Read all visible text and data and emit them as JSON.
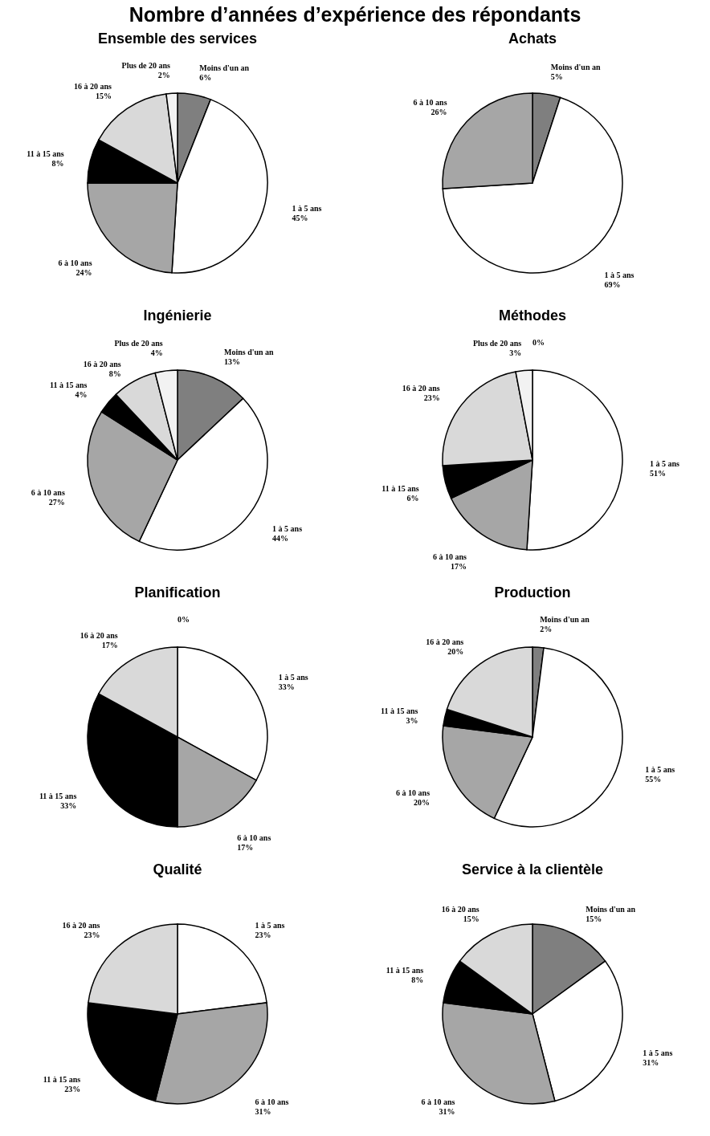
{
  "chart_data": [
    {
      "type": "pie",
      "title": "Nombre d’années d’expérience des répondants",
      "subtitle": "Ensemble des services",
      "categories": [
        "Moins d'un an",
        "1 à 5 ans",
        "6 à 10 ans",
        "11 à 15 ans",
        "16 à 20 ans",
        "Plus de 20 ans"
      ],
      "values": [
        6,
        45,
        24,
        8,
        15,
        2
      ],
      "value_labels": [
        "6%",
        "45%",
        "24%",
        "8%",
        "15%",
        "2%"
      ],
      "colors": [
        "#7f7f7f",
        "#ffffff",
        "#a6a6a6",
        "#000000",
        "#d9d9d9",
        "#f2f2f2"
      ]
    },
    {
      "type": "pie",
      "title": "Achats",
      "categories": [
        "Moins d'un an",
        "1 à 5 ans",
        "6 à 10 ans"
      ],
      "values": [
        5,
        69,
        26
      ],
      "value_labels": [
        "5%",
        "69%",
        "26%"
      ],
      "colors": [
        "#7f7f7f",
        "#ffffff",
        "#a6a6a6"
      ]
    },
    {
      "type": "pie",
      "title": "Ingénierie",
      "categories": [
        "Moins d'un an",
        "1 à 5 ans",
        "6 à 10 ans",
        "11 à 15 ans",
        "16 à 20 ans",
        "Plus de 20 ans"
      ],
      "values": [
        13,
        44,
        27,
        4,
        8,
        4
      ],
      "value_labels": [
        "13%",
        "44%",
        "27%",
        "4%",
        "8%",
        "4%"
      ],
      "colors": [
        "#7f7f7f",
        "#ffffff",
        "#a6a6a6",
        "#000000",
        "#d9d9d9",
        "#f2f2f2"
      ]
    },
    {
      "type": "pie",
      "title": "Méthodes",
      "categories": [
        null,
        "1 à 5 ans",
        "6 à 10 ans",
        "11 à 15 ans",
        "16 à 20 ans",
        "Plus de 20 ans"
      ],
      "values": [
        0,
        51,
        17,
        6,
        23,
        3
      ],
      "value_labels": [
        "0%",
        "51%",
        "17%",
        "6%",
        "23%",
        "3%"
      ],
      "colors": [
        "#7f7f7f",
        "#ffffff",
        "#a6a6a6",
        "#000000",
        "#d9d9d9",
        "#f2f2f2"
      ]
    },
    {
      "type": "pie",
      "title": "Planification",
      "categories": [
        null,
        "1 à 5 ans",
        "6 à 10 ans",
        "11 à 15 ans",
        "16 à 20 ans"
      ],
      "values": [
        0,
        33,
        17,
        33,
        17
      ],
      "value_labels": [
        "0%",
        "33%",
        "17%",
        "33%",
        "17%"
      ],
      "colors": [
        "#7f7f7f",
        "#ffffff",
        "#a6a6a6",
        "#000000",
        "#d9d9d9"
      ]
    },
    {
      "type": "pie",
      "title": "Production",
      "categories": [
        "Moins d'un an",
        "1 à 5 ans",
        "6 à 10 ans",
        "11 à 15 ans",
        "16 à 20 ans"
      ],
      "values": [
        2,
        55,
        20,
        3,
        20
      ],
      "value_labels": [
        "2%",
        "55%",
        "20%",
        "3%",
        "20%"
      ],
      "colors": [
        "#7f7f7f",
        "#ffffff",
        "#a6a6a6",
        "#000000",
        "#d9d9d9"
      ]
    },
    {
      "type": "pie",
      "title": "Qualité",
      "categories": [
        "1 à 5 ans",
        "6 à 10 ans",
        "11 à 15 ans",
        "16 à 20 ans"
      ],
      "values": [
        23,
        31,
        23,
        23
      ],
      "value_labels": [
        "23%",
        "31%",
        "23%",
        "23%"
      ],
      "colors": [
        "#ffffff",
        "#a6a6a6",
        "#000000",
        "#d9d9d9"
      ]
    },
    {
      "type": "pie",
      "title": "Service à la clientèle",
      "categories": [
        "Moins d'un an",
        "1 à 5 ans",
        "6 à 10 ans",
        "11 à 15 ans",
        "16 à 20 ans"
      ],
      "values": [
        15,
        31,
        31,
        8,
        15
      ],
      "value_labels": [
        "15%",
        "31%",
        "31%",
        "8%",
        "15%"
      ],
      "colors": [
        "#7f7f7f",
        "#ffffff",
        "#a6a6a6",
        "#000000",
        "#d9d9d9"
      ]
    }
  ]
}
